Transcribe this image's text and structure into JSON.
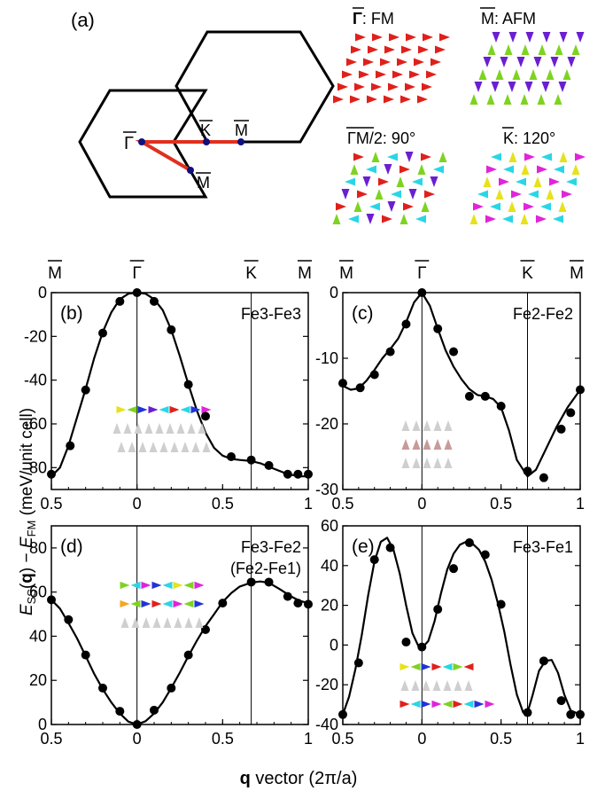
{
  "figure": {
    "xlabel_bold": "q",
    "xlabel_rest": " vector (2π/a)",
    "ylabel_E": "E",
    "ylabel_ss": "SS",
    "ylabel_q": "q",
    "ylabel_mid": ") − ",
    "ylabel_E2": "E",
    "ylabel_fm": "FM",
    "ylabel_end": " (meV/unit cell)"
  },
  "brillouin_zone": {
    "panel_label": "(a)",
    "labels": {
      "gamma": "Γ",
      "k": "K",
      "m_right": "M",
      "m_lower": "M"
    }
  },
  "spin_patterns": [
    {
      "key": "fm",
      "sym": "Γ",
      "text": ": FM"
    },
    {
      "key": "afm",
      "sym": "M",
      "text": ": AFM"
    },
    {
      "key": "p90",
      "sym": "ΓM",
      "text": "/2: 90°"
    },
    {
      "key": "p120",
      "sym": "K",
      "text": ": 120°"
    }
  ],
  "palette": {
    "red": "#e0201b",
    "green": "#7ed321",
    "purple": "#6a1fd0",
    "cyan": "#29d6e6",
    "yellow": "#e6e21b",
    "magenta": "#e024d8",
    "blue": "#2233d8",
    "orange": "#f5a623",
    "gray": "#cfcfcf",
    "pink": "#c89a9a",
    "line": "#000000",
    "path": "#e0301e",
    "dot": "#101080"
  },
  "chart_data": [
    {
      "type": "line",
      "panel": "(b)",
      "annotation": "Fe3-Fe3",
      "top_labels": [
        "M",
        "Γ",
        "K",
        "M"
      ],
      "xlim": [
        -0.5,
        1.0
      ],
      "ylim": [
        -90,
        0
      ],
      "x_ticklabels": [
        "0.5",
        "0",
        "0.5",
        "1"
      ],
      "yticks": [
        0,
        -20,
        -40,
        -60,
        -80
      ],
      "y_ticklabels": [
        "0",
        "-20",
        "-40",
        "-60",
        "-80"
      ],
      "vlines": [
        0,
        0.667
      ],
      "points": {
        "x": [
          -0.5,
          -0.39,
          -0.3,
          -0.2,
          -0.1,
          0,
          0.1,
          0.2,
          0.3,
          0.4,
          0.55,
          0.667,
          0.77,
          0.88,
          0.94,
          1.0
        ],
        "y": [
          -83,
          -70,
          -44.5,
          -18.5,
          -4,
          0,
          -4,
          -17,
          -42,
          -56.5,
          -75,
          -76.5,
          -79,
          -83,
          -83,
          -83
        ]
      },
      "curve": {
        "x": [
          -0.5,
          -0.45,
          -0.4,
          -0.35,
          -0.3,
          -0.25,
          -0.2,
          -0.15,
          -0.1,
          -0.05,
          0,
          0.05,
          0.1,
          0.15,
          0.2,
          0.25,
          0.3,
          0.35,
          0.4,
          0.45,
          0.5,
          0.55,
          0.6,
          0.667,
          0.72,
          0.8,
          0.88,
          0.95,
          1.0
        ],
        "y": [
          -84,
          -80,
          -70,
          -57,
          -44,
          -30,
          -18,
          -9,
          -3,
          -0.5,
          0,
          -0.5,
          -3,
          -8,
          -17,
          -29,
          -42,
          -54,
          -64,
          -71,
          -74.5,
          -76,
          -76.5,
          -77,
          -78,
          -80.5,
          -83,
          -84,
          -84
        ]
      },
      "inset": "b"
    },
    {
      "type": "line",
      "panel": "(c)",
      "annotation": "Fe2-Fe2",
      "top_labels": [
        "M",
        "Γ",
        "K",
        "M"
      ],
      "xlim": [
        -0.5,
        1.0
      ],
      "ylim": [
        -30,
        0
      ],
      "x_ticklabels": [
        "0.5",
        "0",
        "0.5",
        "1"
      ],
      "yticks": [
        0,
        -10,
        -20,
        -30
      ],
      "y_ticklabels": [
        "0",
        "-10",
        "-20",
        "-30"
      ],
      "vlines": [
        0,
        0.667
      ],
      "points": {
        "x": [
          -0.5,
          -0.39,
          -0.3,
          -0.2,
          -0.1,
          0,
          0.1,
          0.2,
          0.3,
          0.4,
          0.5,
          0.667,
          0.77,
          0.88,
          0.94,
          1.0
        ],
        "y": [
          -13.8,
          -14.5,
          -12.5,
          -9,
          -4.8,
          0,
          -5.5,
          -9,
          -15.8,
          -15.8,
          -17.3,
          -27.2,
          -28.2,
          -20.8,
          -18.3,
          -14.8
        ]
      },
      "curve": {
        "x": [
          -0.5,
          -0.45,
          -0.4,
          -0.35,
          -0.3,
          -0.25,
          -0.2,
          -0.15,
          -0.1,
          -0.05,
          0,
          0.05,
          0.1,
          0.15,
          0.2,
          0.25,
          0.3,
          0.35,
          0.4,
          0.45,
          0.5,
          0.55,
          0.6,
          0.667,
          0.72,
          0.78,
          0.85,
          0.92,
          1.0
        ],
        "y": [
          -14.2,
          -14.8,
          -14.6,
          -13.4,
          -11.8,
          -10,
          -8.6,
          -7,
          -4.5,
          -1.5,
          0,
          -2,
          -5.5,
          -8.8,
          -11.3,
          -13.2,
          -14.7,
          -15.6,
          -15.8,
          -16.2,
          -17.5,
          -21,
          -25.5,
          -28,
          -27,
          -24,
          -20.5,
          -17.5,
          -14.8
        ]
      },
      "inset": "c"
    },
    {
      "type": "line",
      "panel": "(d)",
      "annotation": "Fe3-Fe2",
      "annotation2": "(Fe2-Fe1)",
      "xlim": [
        -0.5,
        1.0
      ],
      "ylim": [
        0,
        90
      ],
      "x_ticklabels": [
        "0.5",
        "0",
        "0.5",
        "1"
      ],
      "yticks": [
        0,
        20,
        40,
        60,
        80
      ],
      "y_ticklabels": [
        "0",
        "20",
        "40",
        "60",
        "80"
      ],
      "vlines": [
        0,
        0.667
      ],
      "points": {
        "x": [
          -0.5,
          -0.4,
          -0.3,
          -0.2,
          -0.1,
          0,
          0.1,
          0.2,
          0.3,
          0.4,
          0.5,
          0.667,
          0.77,
          0.88,
          0.94,
          1.0
        ],
        "y": [
          56.5,
          47.5,
          31.5,
          16.5,
          6,
          0,
          6.5,
          16.5,
          31.5,
          43,
          55,
          64.5,
          64.5,
          58,
          55,
          54.5
        ]
      },
      "curve": {
        "x": [
          -0.5,
          -0.45,
          -0.4,
          -0.35,
          -0.3,
          -0.25,
          -0.2,
          -0.15,
          -0.1,
          -0.05,
          0,
          0.05,
          0.1,
          0.15,
          0.2,
          0.25,
          0.3,
          0.35,
          0.4,
          0.45,
          0.5,
          0.55,
          0.6,
          0.667,
          0.72,
          0.77,
          0.83,
          0.9,
          0.95,
          1.0
        ],
        "y": [
          56.5,
          52.5,
          46,
          39,
          31,
          23,
          16,
          10,
          5,
          1.3,
          0,
          1.5,
          5,
          10,
          16.5,
          23.5,
          31,
          38,
          44.5,
          50,
          55.5,
          59.5,
          62.5,
          64.3,
          64.8,
          64.2,
          61.5,
          58,
          56,
          55
        ]
      },
      "inset": "d"
    },
    {
      "type": "line",
      "panel": "(e)",
      "annotation": "Fe3-Fe1",
      "xlim": [
        -0.5,
        1.0
      ],
      "ylim": [
        -40,
        60
      ],
      "x_ticklabels": [
        "0.5",
        "0",
        "0.5",
        "1"
      ],
      "yticks": [
        60,
        40,
        20,
        0,
        -20,
        -40
      ],
      "y_ticklabels": [
        "60",
        "40",
        "20",
        "0",
        "-20",
        "-40"
      ],
      "vlines": [
        0,
        0.667
      ],
      "points": {
        "x": [
          -0.5,
          -0.4,
          -0.3,
          -0.2,
          -0.1,
          0,
          0.1,
          0.2,
          0.3,
          0.4,
          0.5,
          0.667,
          0.77,
          0.88,
          0.94,
          1.0
        ],
        "y": [
          -35,
          -9,
          43,
          49,
          1.5,
          -1,
          18,
          38.5,
          51.5,
          45.5,
          20.5,
          -34,
          -8,
          -28,
          -35,
          -35
        ]
      },
      "curve": {
        "x": [
          -0.5,
          -0.46,
          -0.42,
          -0.38,
          -0.34,
          -0.3,
          -0.26,
          -0.22,
          -0.18,
          -0.14,
          -0.1,
          -0.06,
          -0.02,
          0,
          0.04,
          0.08,
          0.12,
          0.16,
          0.2,
          0.24,
          0.28,
          0.32,
          0.36,
          0.4,
          0.44,
          0.48,
          0.52,
          0.56,
          0.6,
          0.64,
          0.667,
          0.7,
          0.74,
          0.78,
          0.82,
          0.86,
          0.9,
          0.94,
          1.0
        ],
        "y": [
          -35,
          -26,
          -12,
          5,
          25,
          42,
          52,
          54,
          48,
          36,
          20,
          6,
          -1,
          -1.5,
          2,
          12,
          26,
          38,
          46,
          50.5,
          52,
          51,
          48,
          42,
          33,
          21,
          7,
          -10,
          -25,
          -34,
          -34,
          -25,
          -13,
          -8,
          -7.5,
          -14,
          -25,
          -33,
          -35
        ]
      },
      "inset": "e"
    }
  ]
}
